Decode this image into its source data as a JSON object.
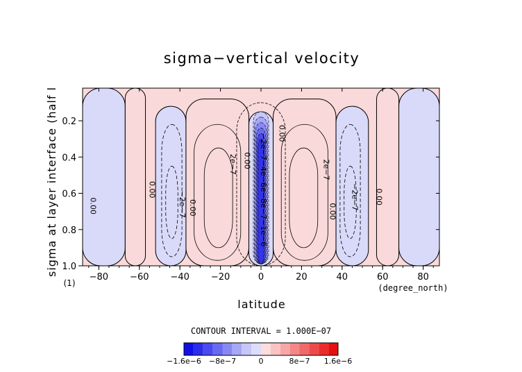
{
  "chart_data": {
    "type": "contour",
    "title": "sigma−vertical velocity",
    "xlabel": "latitude",
    "ylabel": "sigma at layer interface (half l",
    "ylabel_note": "(1)",
    "x_unit": "(degree_north)",
    "xlim": [
      -88,
      88
    ],
    "ylim": [
      1.0,
      0.02
    ],
    "y_reversed": true,
    "x_ticks": [
      -80,
      -60,
      -40,
      -20,
      0,
      20,
      40,
      60,
      80
    ],
    "x_tick_labels": [
      "−80",
      "−60",
      "−40",
      "−20",
      "0",
      "20",
      "40",
      "60",
      "80"
    ],
    "y_ticks": [
      0.2,
      0.4,
      0.6,
      0.8,
      1.0
    ],
    "y_tick_labels": [
      "0.2",
      "0.4",
      "0.6",
      "0.8",
      "1.0"
    ],
    "contour_interval_text": "CONTOUR INTERVAL = 1.000E−07",
    "contour_interval": 1e-07,
    "positive_regions": [
      {
        "x_range": [
          -88,
          -67
        ],
        "y_range": [
          0.02,
          1.0
        ],
        "sign": "negative"
      },
      {
        "x_range": [
          -67,
          -57
        ],
        "y_range": [
          0.02,
          1.0
        ],
        "sign": "positive"
      },
      {
        "x_range": [
          -52,
          -37
        ],
        "y_range": [
          0.12,
          1.0
        ],
        "sign": "negative"
      },
      {
        "x_range": [
          -37,
          -6
        ],
        "y_range": [
          0.08,
          1.0
        ],
        "sign": "positive"
      },
      {
        "x_range": [
          -6,
          6
        ],
        "y_range": [
          0.15,
          1.0
        ],
        "sign": "negative"
      },
      {
        "x_range": [
          6,
          37
        ],
        "y_range": [
          0.08,
          1.0
        ],
        "sign": "positive"
      },
      {
        "x_range": [
          37,
          53
        ],
        "y_range": [
          0.12,
          1.0
        ],
        "sign": "negative"
      },
      {
        "x_range": [
          57,
          68
        ],
        "y_range": [
          0.02,
          1.0
        ],
        "sign": "positive"
      },
      {
        "x_range": [
          68,
          88
        ],
        "y_range": [
          0.02,
          1.0
        ],
        "sign": "negative"
      }
    ],
    "contour_labels": [
      {
        "text": "0.00",
        "x": -84,
        "y": 0.67
      },
      {
        "text": "0.00",
        "x": -55,
        "y": 0.58
      },
      {
        "text": "−2e−7",
        "x": -40,
        "y": 0.66
      },
      {
        "text": "0.00",
        "x": -35,
        "y": 0.68
      },
      {
        "text": "2e−7",
        "x": -15,
        "y": 0.44
      },
      {
        "text": "0.00",
        "x": -8,
        "y": 0.42
      },
      {
        "text": "0.00",
        "x": 9,
        "y": 0.27
      },
      {
        "text": "−2e−7−4e−6e−8e−7−1e−6",
        "x": 0,
        "y": 0.58
      },
      {
        "text": "2e−7",
        "x": 31,
        "y": 0.47
      },
      {
        "text": "0.00",
        "x": 34,
        "y": 0.7
      },
      {
        "text": "−2e−7",
        "x": 45,
        "y": 0.62
      },
      {
        "text": "0.00",
        "x": 57,
        "y": 0.62
      }
    ],
    "colorbar": {
      "min": -1.6e-06,
      "max": 1.6e-06,
      "tick_labels": [
        "−1.6e−6",
        "−8e−7",
        "0",
        "8e−7",
        "1.6e−6"
      ],
      "tick_values": [
        -1.6e-06,
        -8e-07,
        0,
        8e-07,
        1.6e-06
      ],
      "colors": [
        "#1010e6",
        "#2c2ceb",
        "#4a4aef",
        "#6969f2",
        "#8888f5",
        "#a7a7f7",
        "#c6c6fa",
        "#dcdcfc",
        "#fcdcdc",
        "#f9c3c3",
        "#f7a7a7",
        "#f48888",
        "#f16969",
        "#ee4a4a",
        "#eb2c2c",
        "#e61010"
      ]
    },
    "fill_colors": {
      "positive": "#f9d9d9",
      "negative": "#d9d9f9"
    }
  }
}
